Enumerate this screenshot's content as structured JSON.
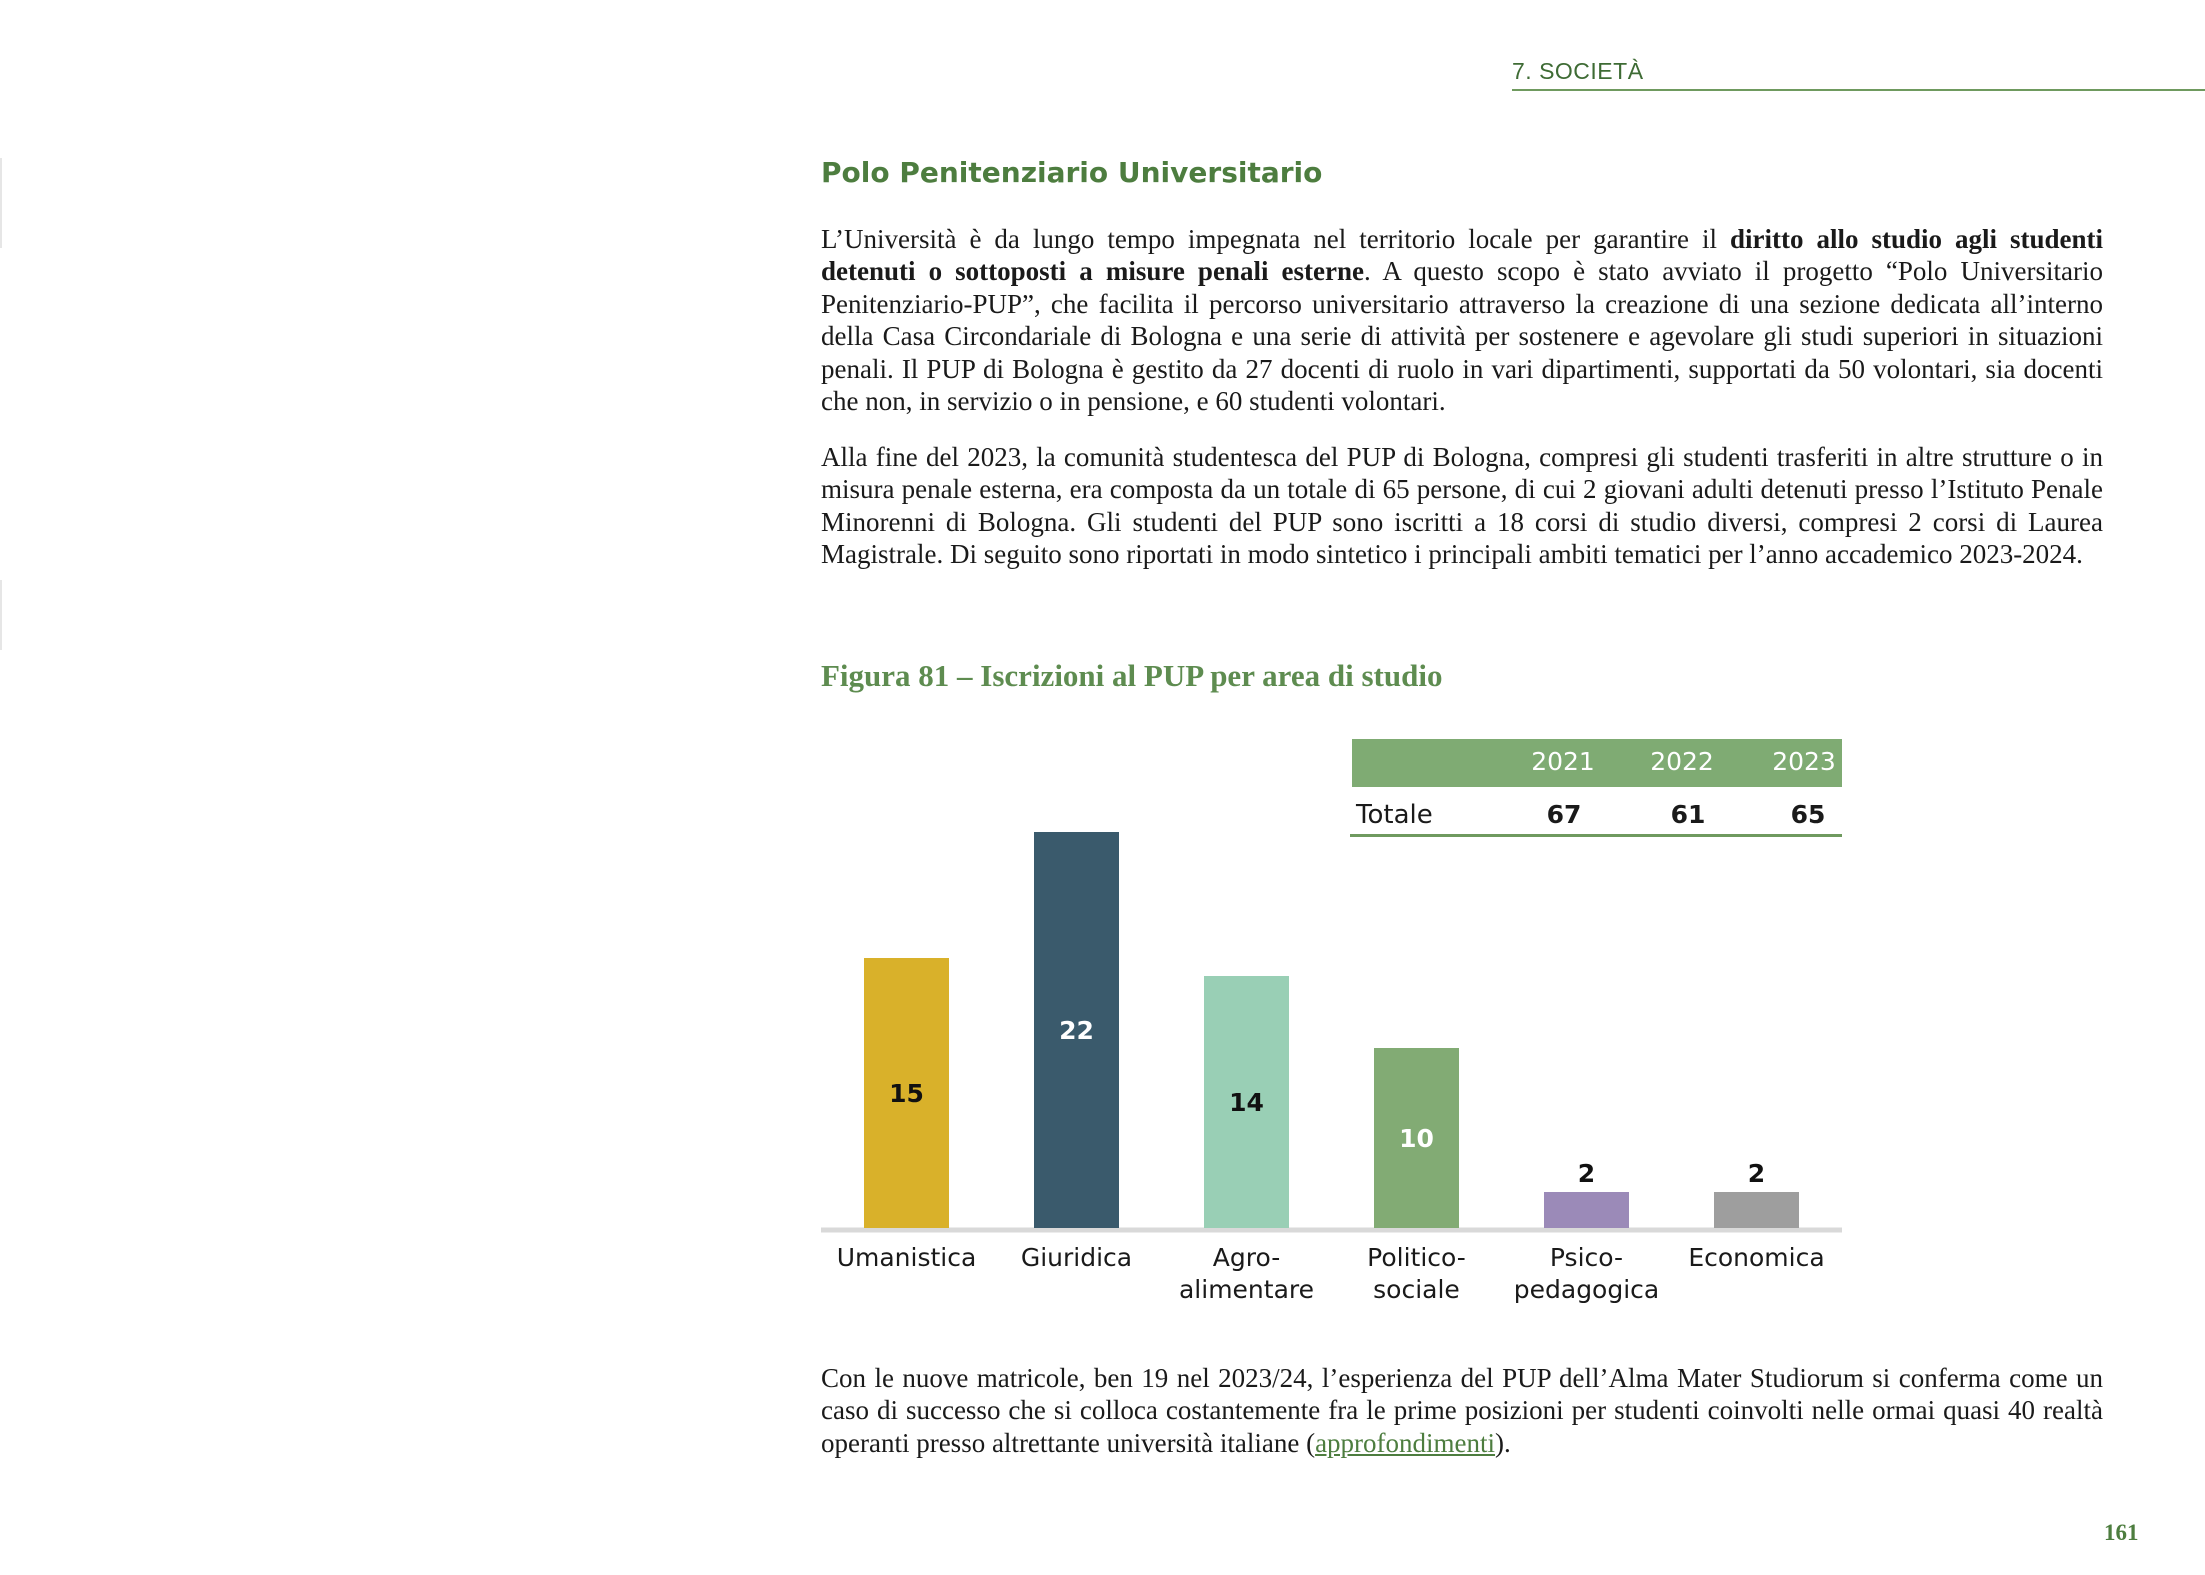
{
  "header": {
    "section": "7. SOCIETÀ"
  },
  "title": "Polo Penitenziario Universitario",
  "paragraph1": {
    "pre": "L’Università è da lungo tempo impegnata nel territorio locale per garantire il ",
    "bold": "diritto allo studio agli studenti detenuti o sottoposti a misure penali esterne",
    "post": ". A questo scopo è stato avviato il progetto “Polo Universitario Penitenziario-PUP”, che facilita il percorso universitario attraverso la creazione di una sezione dedicata all’interno della Casa Circondariale di Bologna e una serie di attività per sostenere e agevolare gli studi superiori in situazioni penali. Il PUP di Bologna è gestito da 27 docenti di ruolo in vari dipartimenti, supportati da 50 volontari, sia docenti che non, in servizio o in pensione, e 60 studenti volontari."
  },
  "paragraph2": "Alla fine del 2023, la comunità studentesca del PUP di Bologna, compresi gli studenti trasferiti in altre strutture o in misura penale esterna, era composta da un totale di 65 persone, di cui 2 giovani adulti detenuti presso l’Istituto Penale Minorenni di Bologna. Gli studenti del PUP sono iscritti a 18 corsi di studio diversi, compresi 2 corsi di Laurea Magistrale. Di seguito sono riportati in modo sintetico i principali ambiti tematici per l’anno accademico 2023-2024.",
  "figure": {
    "title": "Figura 81 – Iscrizioni al PUP per area di studio",
    "table": {
      "years": [
        "2021",
        "2022",
        "2023"
      ],
      "row_label": "Totale",
      "values": [
        "67",
        "61",
        "65"
      ]
    }
  },
  "chart_data": {
    "type": "bar",
    "categories": [
      "Umanistica",
      "Giuridica",
      "Agro-\nalimentare",
      "Politico-\nsociale",
      "Psico-\npedagogica",
      "Economica"
    ],
    "values": [
      15,
      22,
      14,
      10,
      2,
      2
    ],
    "colors": [
      "#d9b12a",
      "#3a5a6c",
      "#99cfb5",
      "#82ab74",
      "#9b8ab8",
      "#9e9e9e"
    ],
    "label_colors": [
      "#111111",
      "#ffffff",
      "#111111",
      "#ffffff",
      "#111111",
      "#111111"
    ],
    "title": "",
    "xlabel": "",
    "ylabel": ""
  },
  "paragraph3": {
    "pre": "Con le nuove matricole, ben 19 nel 2023/24, l’esperienza del PUP dell’Alma Mater Studiorum si conferma come un caso di successo che si colloca costantemente fra le prime posizioni per studenti coinvolti nelle ormai quasi 40 realtà operanti presso altrettante università italiane (",
    "link": "approfondimenti",
    "post": ")."
  },
  "page_number": "161"
}
